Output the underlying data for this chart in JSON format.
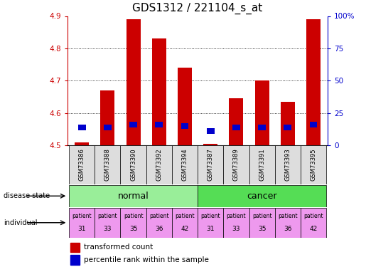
{
  "title": "GDS1312 / 221104_s_at",
  "samples": [
    "GSM73386",
    "GSM73388",
    "GSM73390",
    "GSM73392",
    "GSM73394",
    "GSM73387",
    "GSM73389",
    "GSM73391",
    "GSM73393",
    "GSM73395"
  ],
  "red_values": [
    4.51,
    4.67,
    4.89,
    4.83,
    4.74,
    4.505,
    4.645,
    4.7,
    4.635,
    4.89
  ],
  "blue_values": [
    4.555,
    4.555,
    4.565,
    4.565,
    4.56,
    4.545,
    4.555,
    4.555,
    4.555,
    4.565
  ],
  "ylim_left": [
    4.5,
    4.9
  ],
  "ylim_right": [
    0,
    100
  ],
  "yticks_left": [
    4.5,
    4.6,
    4.7,
    4.8,
    4.9
  ],
  "yticks_right": [
    0,
    25,
    50,
    75,
    100
  ],
  "ytick_labels_right": [
    "0",
    "25",
    "50",
    "75",
    "100%"
  ],
  "bar_width": 0.55,
  "red_color": "#cc0000",
  "blue_color": "#0000cc",
  "bar_bottom": 4.5,
  "individual_labels": [
    "patient\n31",
    "patient\n33",
    "patient\n35",
    "patient\n36",
    "patient\n42",
    "patient\n31",
    "patient\n33",
    "patient\n35",
    "patient\n36",
    "patient\n42"
  ],
  "individual_color": "#ee99ee",
  "tick_color_left": "#cc0000",
  "tick_color_right": "#0000cc",
  "title_fontsize": 11,
  "normal_color": "#99ee99",
  "cancer_color": "#55dd55"
}
